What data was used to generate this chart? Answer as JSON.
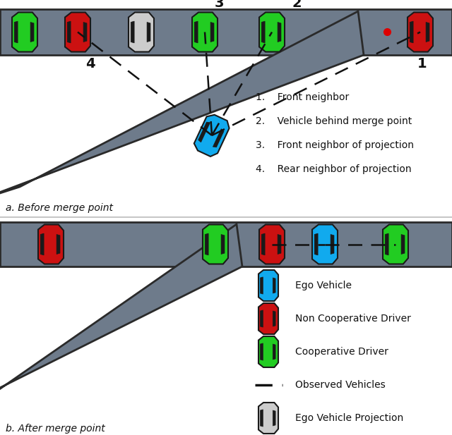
{
  "fig_width": 6.4,
  "fig_height": 6.17,
  "bg_color": "#ffffff",
  "road_color": "#6e7b8b",
  "road_edge_color": "#2a2a2a",
  "car_colors": {
    "green": "#22cc22",
    "red": "#cc1111",
    "blue": "#11aaee",
    "white": "#cccccc"
  },
  "text_color": "#111111",
  "label_a": "a. Before merge point",
  "label_b": "b. After merge point",
  "legend_items": [
    {
      "label": "Ego Vehicle",
      "color": "#11aaee"
    },
    {
      "label": "Non Cooperative Driver",
      "color": "#cc1111"
    },
    {
      "label": "Cooperative Driver",
      "color": "#22cc22"
    },
    {
      "label": "Observed Vehicles",
      "color": "#111111"
    },
    {
      "label": "Ego Vehicle Projection",
      "color": "#cccccc"
    }
  ],
  "numbered_labels": [
    "Front neighbor",
    "Vehicle behind merge point",
    "Front neighbor of projection",
    "Rear neighbor of projection"
  ]
}
